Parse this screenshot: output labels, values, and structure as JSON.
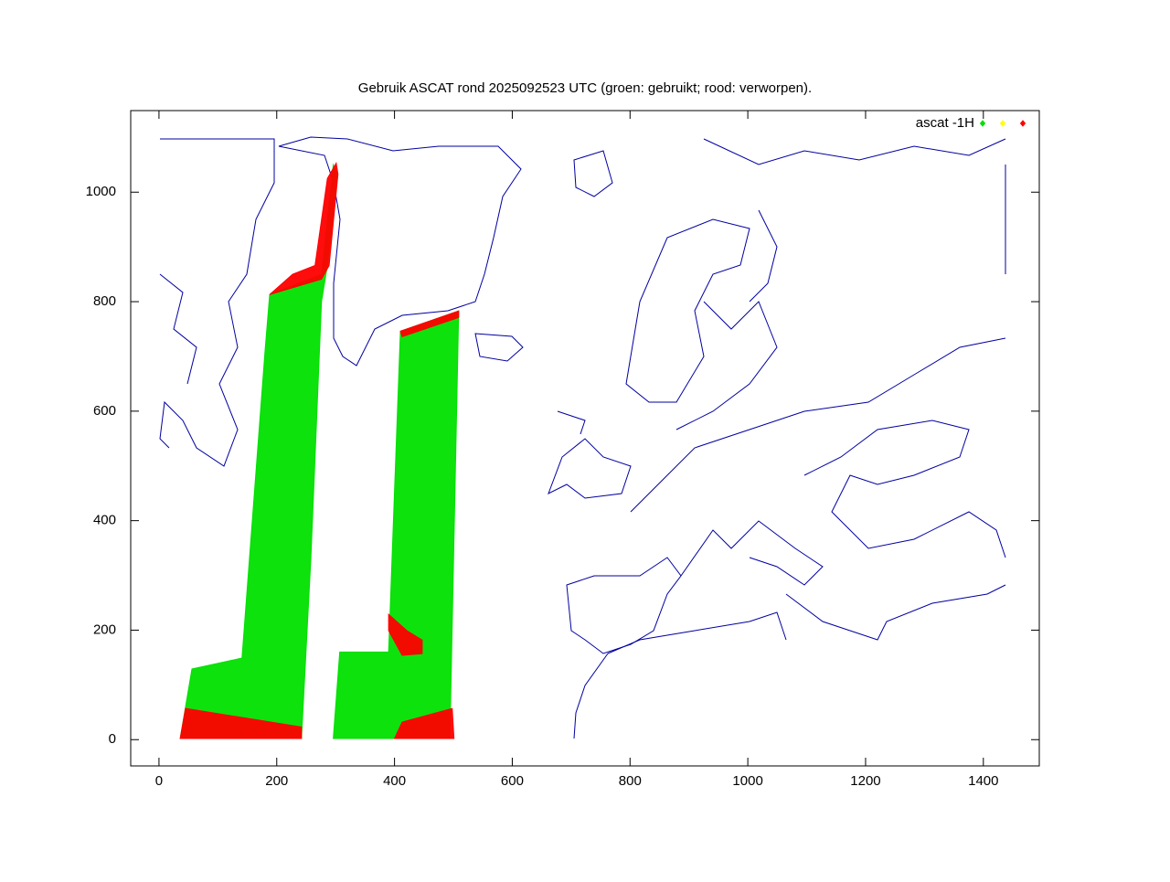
{
  "chart_data": {
    "type": "scatter",
    "title": "Gebruik ASCAT rond 2025092523 UTC (groen: gebruikt; rood: verworpen).",
    "xlim": [
      -48,
      1495
    ],
    "ylim": [
      -48,
      1149
    ],
    "xticks": [
      0,
      200,
      400,
      600,
      800,
      1000,
      1200,
      1400
    ],
    "yticks": [
      0,
      200,
      400,
      600,
      800,
      1000
    ],
    "legend": {
      "label": "ascat -1H",
      "colors": [
        "#00e000",
        "#ffff00",
        "#ff0000"
      ],
      "position": "top-right"
    },
    "series": [
      {
        "color": "#00e000",
        "x": [
          36,
          56,
          141,
          180,
          188,
          276,
          296,
          303,
          286,
          276,
          258,
          242
        ],
        "y": [
          2,
          129,
          149,
          708,
          813,
          850,
          1050,
          1033,
          866,
          800,
          332,
          2
        ]
      },
      {
        "color": "#00e000",
        "x": [
          296,
          307,
          390,
          410,
          509,
          494
        ],
        "y": [
          2,
          160,
          160,
          746,
          783,
          2
        ]
      },
      {
        "color": "#ff0000",
        "x": [
          36,
          45,
          242,
          242
        ],
        "y": [
          2,
          57,
          23,
          2
        ]
      },
      {
        "color": "#ff0000",
        "x": [
          188,
          227,
          265,
          286,
          301,
          304,
          289,
          276
        ],
        "y": [
          813,
          850,
          866,
          1025,
          1053,
          1033,
          866,
          841
        ]
      },
      {
        "color": "#ff0000",
        "x": [
          400,
          413,
          498,
          501
        ],
        "y": [
          2,
          32,
          57,
          2
        ]
      },
      {
        "color": "#ff0000",
        "x": [
          410,
          509,
          509,
          413
        ],
        "y": [
          746,
          783,
          771,
          736
        ]
      },
      {
        "color": "#ff0000",
        "x": [
          390,
          421,
          447,
          447,
          413,
          390
        ],
        "y": [
          229,
          199,
          182,
          157,
          154,
          199
        ]
      }
    ]
  }
}
